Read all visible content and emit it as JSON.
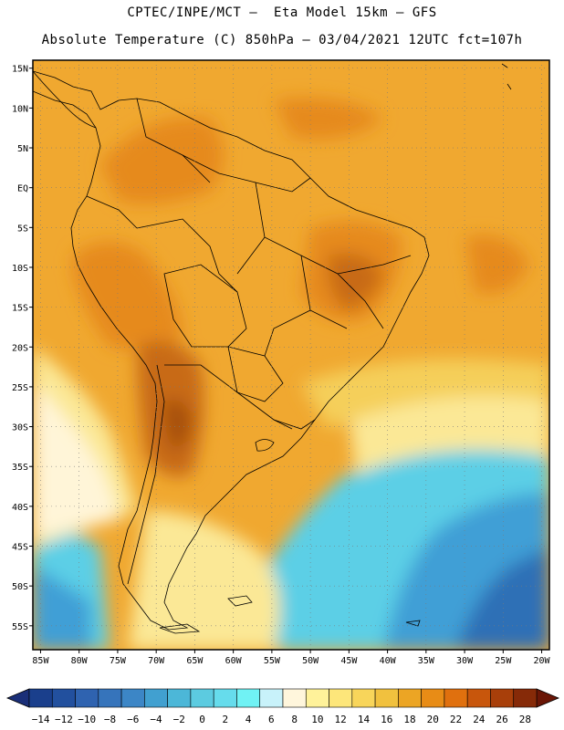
{
  "header": {
    "line1": "CPTEC/INPE/MCT —  Eta Model 15km — GFS",
    "line2": "Absolute Temperature (C) 850hPa — 03/04/2021 12UTC fct=107h"
  },
  "map": {
    "lat_ticks": [
      "15N",
      "10N",
      "5N",
      "EQ",
      "5S",
      "10S",
      "15S",
      "20S",
      "25S",
      "30S",
      "35S",
      "40S",
      "45S",
      "50S",
      "55S"
    ],
    "lon_ticks": [
      "85W",
      "80W",
      "75W",
      "70W",
      "65W",
      "60W",
      "55W",
      "50W",
      "45W",
      "40W",
      "35W",
      "30W",
      "25W",
      "20W"
    ],
    "extent": {
      "lon_min": -86,
      "lon_max": -19,
      "lat_min": -58,
      "lat_max": 16
    },
    "grid": true,
    "field_colors": {
      "cold_deep": "#2f6fb6",
      "cold": "#3f9fd6",
      "cool": "#5ccfe6",
      "mild": "#bfeef6",
      "neutral": "#fff5d8",
      "warm_pale": "#fbe896",
      "warm": "#f5cf5a",
      "hot": "#f0a830",
      "hotter": "#e68a1e",
      "hottest": "#c86a12",
      "extreme": "#a65010"
    }
  },
  "colorbar": {
    "labels": [
      "-14",
      "-12",
      "-10",
      "-8",
      "-6",
      "-4",
      "-2",
      "0",
      "2",
      "4",
      "6",
      "8",
      "10",
      "12",
      "14",
      "16",
      "18",
      "20",
      "22",
      "24",
      "26",
      "28"
    ],
    "colors": [
      "#1a3f8c",
      "#22509e",
      "#2f63b0",
      "#3674bb",
      "#3c86c6",
      "#41a0d0",
      "#4cb7d8",
      "#5ccbe0",
      "#66dcec",
      "#70f2f4",
      "#c8f2fa",
      "#fff6dc",
      "#fff29a",
      "#fde67a",
      "#f8d55a",
      "#f1c13e",
      "#eca524",
      "#e88c16",
      "#e0700e",
      "#c8560c",
      "#a83f0a",
      "#862a08"
    ],
    "left_triangle_color": "#1a2f78",
    "right_triangle_color": "#6a1606"
  }
}
